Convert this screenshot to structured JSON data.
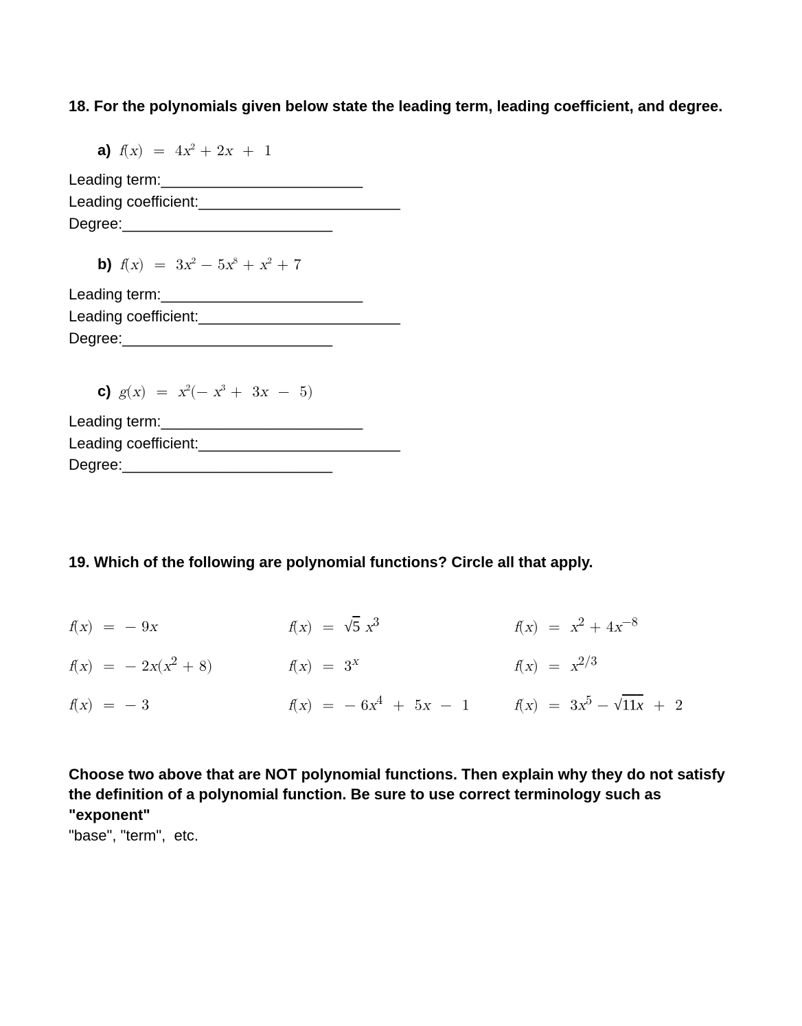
{
  "q18": {
    "prompt": "18. For the polynomials given below state the leading term, leading coefficient, and degree.",
    "parts": [
      {
        "letter": "a)",
        "equation_html": "<i>f</i>(<i>x</i>) &nbsp;=&nbsp; 4<i>x</i><sup>2</sup> + 2<i>x</i>&nbsp; +&nbsp; 1"
      },
      {
        "letter": "b)",
        "equation_html": "<i>f</i>(<i>x</i>) &nbsp;=&nbsp; 3<i>x</i><sup>2</sup> − 5<i>x</i><sup>8</sup> + <i>x</i><sup>2</sup> + 7"
      },
      {
        "letter": "c)",
        "equation_html": "<i>g</i>(<i>x</i>) &nbsp;=&nbsp; <i>x</i><sup>2</sup>(− <i>x</i><sup>3</sup> +&nbsp; 3<i>x</i>&nbsp; −&nbsp; 5)"
      }
    ],
    "fill": {
      "leading_term": "Leading term:________________________",
      "leading_coeff": "Leading coefficient:________________________",
      "degree": "Degree:_________________________"
    }
  },
  "q19": {
    "prompt": "19. Which of the following are polynomial functions? Circle all that apply.",
    "rows": [
      [
        "<i>f</i>(<i>x</i>) &nbsp;=&nbsp; − 9<i>x</i>",
        "<i>f</i>(<i>x</i>) &nbsp;=&nbsp; <span class=\"sqrt-sym\">√<span class=\"ovl\">5</span></span> <i>x</i><sup>3</sup>",
        "<i>f</i>(<i>x</i>) &nbsp;=&nbsp; <i>x</i><sup>2</sup> + 4<i>x</i><sup>−8</sup>"
      ],
      [
        "<i>f</i>(<i>x</i>) &nbsp;=&nbsp; − 2<i>x</i>(<i>x</i><sup>2</sup> + 8)",
        "<i>f</i>(<i>x</i>) &nbsp;=&nbsp; 3<sup><i>x</i></sup>",
        "<i>f</i>(<i>x</i>) &nbsp;=&nbsp; <i>x</i><sup>2/3</sup>"
      ],
      [
        "<i>f</i>(<i>x</i>) &nbsp;=&nbsp; − 3",
        "<i>f</i>(<i>x</i>) &nbsp;=&nbsp; − 6<i>x</i><sup>4</sup> &nbsp;+&nbsp; 5<i>x</i>&nbsp; −&nbsp; 1",
        "<i>f</i>(<i>x</i>) &nbsp;=&nbsp; 3<i>x</i><sup>5</sup> − <span class=\"sqrt-sym\">√<span class=\"ovl\">11<i>x</i></span></span> &nbsp;+&nbsp; 2"
      ]
    ],
    "closing_html": "<span class=\"bold\">Choose two above that are NOT polynomial functions. Then explain why they do not satisfy the definition of a polynomial function. Be sure to use correct terminology such as \"exponent\"</span><br>\"base\", \"term\",&nbsp; etc."
  }
}
